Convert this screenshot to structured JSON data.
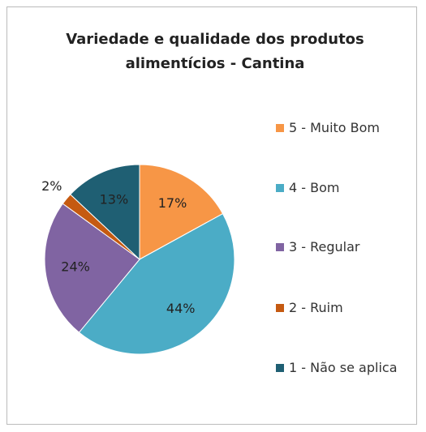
{
  "chart_data": {
    "type": "pie",
    "title": "Variedade e qualidade dos produtos alimentícios - Cantina",
    "categories": [
      "5 - Muito Bom",
      "4 - Bom",
      "3 - Regular",
      "2 - Ruim",
      "1 - Não se aplica"
    ],
    "values": [
      17,
      44,
      24,
      2,
      13
    ],
    "value_labels": [
      "17%",
      "44%",
      "24%",
      "2%",
      "13%"
    ],
    "colors": [
      "#f79646",
      "#4bacc6",
      "#8064a2",
      "#c55a11",
      "#1f5f73"
    ],
    "legend": "right"
  }
}
